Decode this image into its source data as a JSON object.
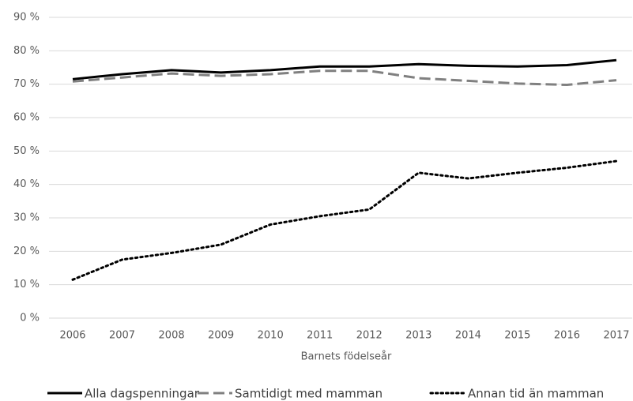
{
  "chart_data": {
    "type": "line",
    "xlabel": "Barnets födelseår",
    "categories": [
      "2006",
      "2007",
      "2008",
      "2009",
      "2010",
      "2011",
      "2012",
      "2013",
      "2014",
      "2015",
      "2016",
      "2017"
    ],
    "series": [
      {
        "name": "Alla dagspenningar",
        "color": "#000000",
        "dash": "solid",
        "values": [
          71.5,
          73,
          74.2,
          73.5,
          74.2,
          75.3,
          75.3,
          76,
          75.5,
          75.3,
          75.7,
          77.2
        ]
      },
      {
        "name": "Samtidigt med mamman",
        "color": "#808080",
        "dash": "dashed",
        "values": [
          70.8,
          72,
          73.2,
          72.5,
          73,
          74,
          74,
          71.8,
          71,
          70.2,
          69.8,
          71.2
        ]
      },
      {
        "name": "Annan tid än mamman",
        "color": "#000000",
        "dash": "dotted",
        "values": [
          11.5,
          17.5,
          19.5,
          22,
          28,
          30.5,
          32.5,
          43.5,
          41.8,
          43.5,
          45,
          47
        ]
      }
    ],
    "ylim": [
      0,
      90
    ],
    "yticks": [
      {
        "value": 0,
        "label": "0 %"
      },
      {
        "value": 10,
        "label": "10 %"
      },
      {
        "value": 20,
        "label": "20 %"
      },
      {
        "value": 30,
        "label": "30 %"
      },
      {
        "value": 40,
        "label": "40 %"
      },
      {
        "value": 50,
        "label": "50 %"
      },
      {
        "value": 60,
        "label": "60 %"
      },
      {
        "value": 70,
        "label": "70 %"
      },
      {
        "value": 80,
        "label": "80 %"
      },
      {
        "value": 90,
        "label": "90 %"
      }
    ],
    "grid": true
  }
}
